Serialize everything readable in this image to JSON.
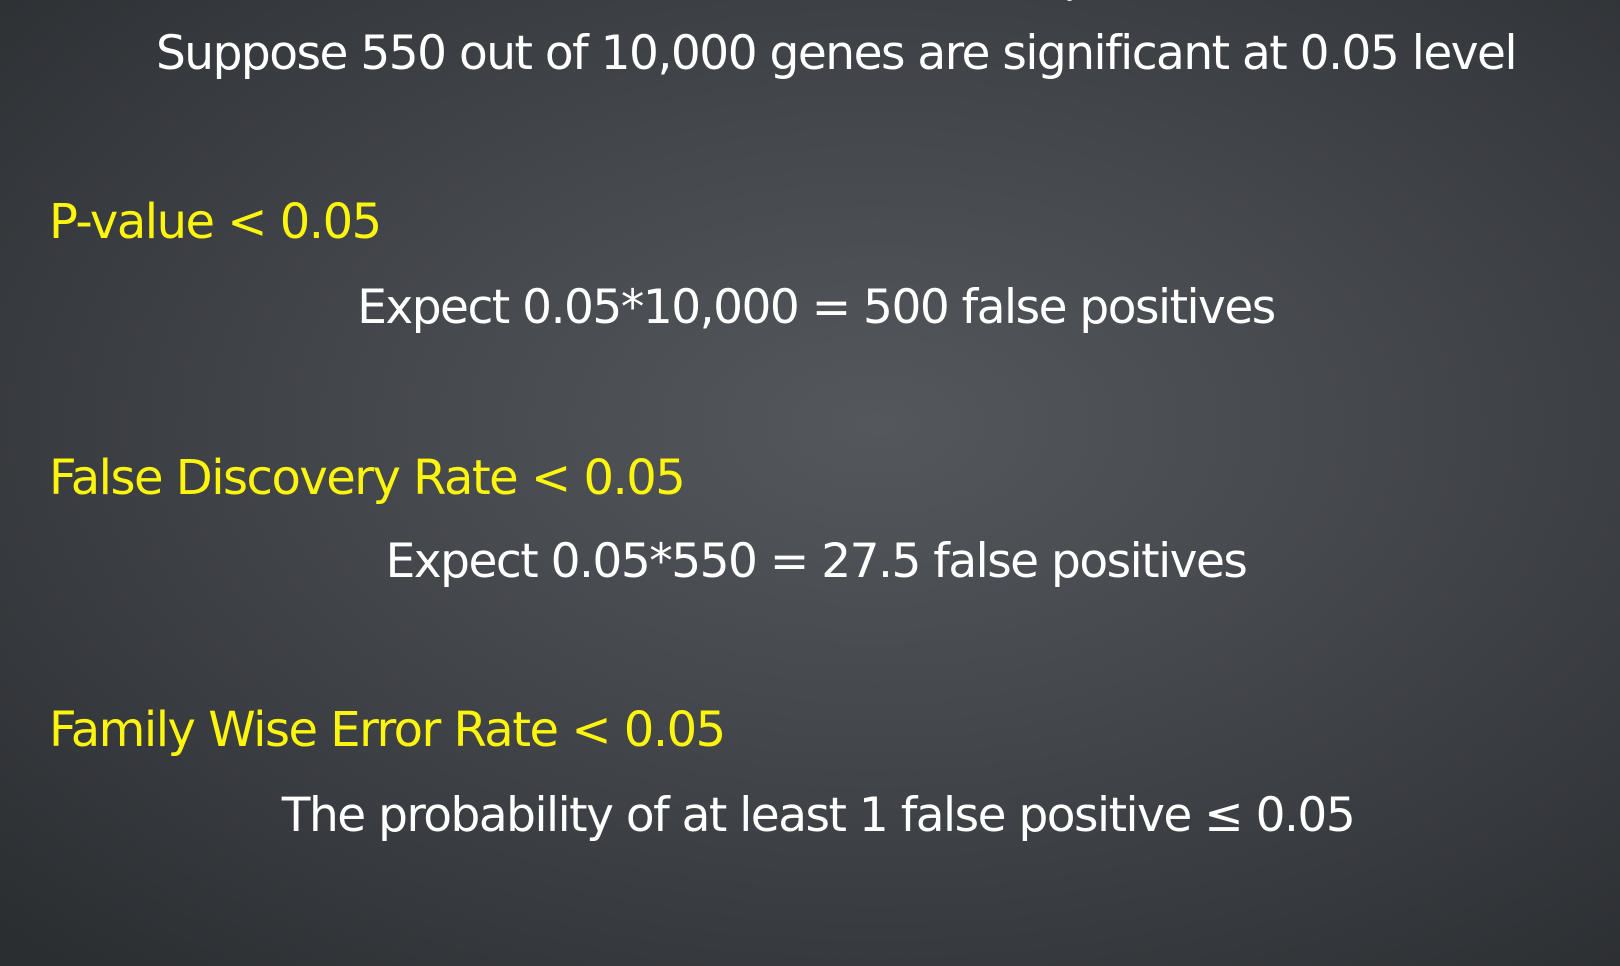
{
  "slide": {
    "intro": "Suppose 550 out of 10,000 genes are significant at 0.05 level",
    "sections": [
      {
        "heading": "P-value < 0.05",
        "detail": "Expect 0.05*10,000 = 500 false positives"
      },
      {
        "heading": "False Discovery Rate < 0.05",
        "detail": "Expect 0.05*550 = 27.5 false positives"
      },
      {
        "heading": "Family Wise Error Rate < 0.05",
        "detail": "The probability of at least 1 false positive ≤ 0.05"
      }
    ]
  },
  "colors": {
    "heading": "#fdf60c",
    "text": "#ffffff",
    "background": "#45484d"
  }
}
